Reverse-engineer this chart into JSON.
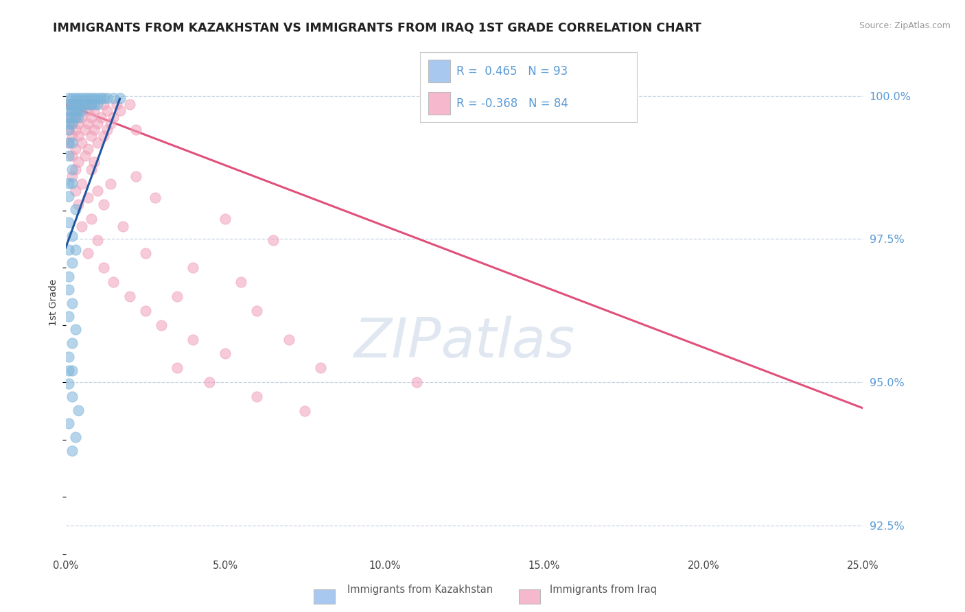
{
  "title": "IMMIGRANTS FROM KAZAKHSTAN VS IMMIGRANTS FROM IRAQ 1ST GRADE CORRELATION CHART",
  "source_text": "Source: ZipAtlas.com",
  "ylabel": "1st Grade",
  "xlim": [
    0.0,
    0.25
  ],
  "ylim": [
    0.92,
    1.008
  ],
  "xticks": [
    0.0,
    0.05,
    0.1,
    0.15,
    0.2,
    0.25
  ],
  "xticklabels": [
    "0.0%",
    "5.0%",
    "10.0%",
    "15.0%",
    "20.0%",
    "25.0%"
  ],
  "ytick_vals": [
    0.925,
    0.95,
    0.975,
    1.0
  ],
  "ytick_labels": [
    "92.5%",
    "95.0%",
    "97.5%",
    "100.0%"
  ],
  "legend_kaz_R": "0.465",
  "legend_kaz_N": "93",
  "legend_iraq_R": "-0.368",
  "legend_iraq_N": "84",
  "kaz_color": "#7ab3d9",
  "iraq_color": "#f0a0b8",
  "kaz_line_color": "#2255a0",
  "iraq_line_color": "#e0507a",
  "legend_kaz_color": "#a8c8f0",
  "legend_iraq_color": "#f5b8cc",
  "watermark_color": "#ccd8e8",
  "grid_color": "#c8d4e4",
  "right_tick_color": "#5b9bd5",
  "background_color": "#ffffff",
  "kaz_line": [
    [
      0.0,
      0.9735
    ],
    [
      0.017,
      0.9995
    ]
  ],
  "iraq_line": [
    [
      0.0,
      0.9985
    ],
    [
      0.25,
      0.9455
    ]
  ],
  "kaz_scatter": [
    [
      0.001,
      0.9996
    ],
    [
      0.002,
      0.9996
    ],
    [
      0.003,
      0.9996
    ],
    [
      0.004,
      0.9996
    ],
    [
      0.005,
      0.9996
    ],
    [
      0.006,
      0.9996
    ],
    [
      0.007,
      0.9996
    ],
    [
      0.008,
      0.9996
    ],
    [
      0.009,
      0.9996
    ],
    [
      0.01,
      0.9996
    ],
    [
      0.011,
      0.9996
    ],
    [
      0.012,
      0.9996
    ],
    [
      0.013,
      0.9996
    ],
    [
      0.015,
      0.9996
    ],
    [
      0.017,
      0.9996
    ],
    [
      0.001,
      0.9985
    ],
    [
      0.002,
      0.9985
    ],
    [
      0.003,
      0.9985
    ],
    [
      0.004,
      0.9985
    ],
    [
      0.005,
      0.9985
    ],
    [
      0.006,
      0.9985
    ],
    [
      0.007,
      0.9985
    ],
    [
      0.008,
      0.9985
    ],
    [
      0.009,
      0.9985
    ],
    [
      0.01,
      0.9985
    ],
    [
      0.001,
      0.9974
    ],
    [
      0.002,
      0.9974
    ],
    [
      0.003,
      0.9974
    ],
    [
      0.004,
      0.9974
    ],
    [
      0.005,
      0.9974
    ],
    [
      0.001,
      0.9963
    ],
    [
      0.002,
      0.9963
    ],
    [
      0.003,
      0.9963
    ],
    [
      0.004,
      0.9963
    ],
    [
      0.001,
      0.9952
    ],
    [
      0.002,
      0.9952
    ],
    [
      0.001,
      0.9941
    ],
    [
      0.001,
      0.9918
    ],
    [
      0.002,
      0.9918
    ],
    [
      0.001,
      0.9895
    ],
    [
      0.002,
      0.9872
    ],
    [
      0.001,
      0.9848
    ],
    [
      0.002,
      0.9848
    ],
    [
      0.001,
      0.9825
    ],
    [
      0.003,
      0.9802
    ],
    [
      0.001,
      0.9779
    ],
    [
      0.002,
      0.9755
    ],
    [
      0.001,
      0.9732
    ],
    [
      0.003,
      0.9732
    ],
    [
      0.002,
      0.9709
    ],
    [
      0.001,
      0.9685
    ],
    [
      0.001,
      0.9662
    ],
    [
      0.002,
      0.9638
    ],
    [
      0.001,
      0.9615
    ],
    [
      0.003,
      0.9592
    ],
    [
      0.002,
      0.9568
    ],
    [
      0.001,
      0.9545
    ],
    [
      0.001,
      0.9521
    ],
    [
      0.002,
      0.9521
    ],
    [
      0.001,
      0.9498
    ],
    [
      0.002,
      0.9475
    ],
    [
      0.004,
      0.9451
    ],
    [
      0.001,
      0.9428
    ],
    [
      0.003,
      0.9405
    ],
    [
      0.002,
      0.9381
    ]
  ],
  "iraq_scatter": [
    [
      0.001,
      0.9985
    ],
    [
      0.003,
      0.9985
    ],
    [
      0.006,
      0.9985
    ],
    [
      0.008,
      0.9985
    ],
    [
      0.012,
      0.9985
    ],
    [
      0.016,
      0.9985
    ],
    [
      0.02,
      0.9985
    ],
    [
      0.002,
      0.9974
    ],
    [
      0.004,
      0.9974
    ],
    [
      0.007,
      0.9974
    ],
    [
      0.009,
      0.9974
    ],
    [
      0.013,
      0.9974
    ],
    [
      0.017,
      0.9974
    ],
    [
      0.001,
      0.9963
    ],
    [
      0.003,
      0.9963
    ],
    [
      0.005,
      0.9963
    ],
    [
      0.008,
      0.9963
    ],
    [
      0.011,
      0.9963
    ],
    [
      0.015,
      0.9963
    ],
    [
      0.002,
      0.9952
    ],
    [
      0.004,
      0.9952
    ],
    [
      0.007,
      0.9952
    ],
    [
      0.01,
      0.9952
    ],
    [
      0.014,
      0.9952
    ],
    [
      0.001,
      0.9941
    ],
    [
      0.003,
      0.9941
    ],
    [
      0.006,
      0.9941
    ],
    [
      0.009,
      0.9941
    ],
    [
      0.013,
      0.9941
    ],
    [
      0.022,
      0.9941
    ],
    [
      0.002,
      0.993
    ],
    [
      0.004,
      0.993
    ],
    [
      0.008,
      0.993
    ],
    [
      0.012,
      0.993
    ],
    [
      0.001,
      0.9918
    ],
    [
      0.005,
      0.9918
    ],
    [
      0.01,
      0.9918
    ],
    [
      0.003,
      0.9907
    ],
    [
      0.007,
      0.9907
    ],
    [
      0.002,
      0.9896
    ],
    [
      0.006,
      0.9896
    ],
    [
      0.004,
      0.9885
    ],
    [
      0.009,
      0.9885
    ],
    [
      0.003,
      0.9872
    ],
    [
      0.008,
      0.9872
    ],
    [
      0.002,
      0.986
    ],
    [
      0.022,
      0.986
    ],
    [
      0.005,
      0.9847
    ],
    [
      0.014,
      0.9847
    ],
    [
      0.003,
      0.9835
    ],
    [
      0.01,
      0.9835
    ],
    [
      0.007,
      0.9822
    ],
    [
      0.028,
      0.9822
    ],
    [
      0.004,
      0.981
    ],
    [
      0.012,
      0.981
    ],
    [
      0.008,
      0.9785
    ],
    [
      0.05,
      0.9785
    ],
    [
      0.005,
      0.9772
    ],
    [
      0.018,
      0.9772
    ],
    [
      0.01,
      0.9748
    ],
    [
      0.065,
      0.9748
    ],
    [
      0.007,
      0.9725
    ],
    [
      0.025,
      0.9725
    ],
    [
      0.012,
      0.97
    ],
    [
      0.04,
      0.97
    ],
    [
      0.015,
      0.9675
    ],
    [
      0.055,
      0.9675
    ],
    [
      0.02,
      0.965
    ],
    [
      0.035,
      0.965
    ],
    [
      0.025,
      0.9625
    ],
    [
      0.06,
      0.9625
    ],
    [
      0.03,
      0.96
    ],
    [
      0.04,
      0.9575
    ],
    [
      0.07,
      0.9575
    ],
    [
      0.05,
      0.955
    ],
    [
      0.035,
      0.9525
    ],
    [
      0.08,
      0.9525
    ],
    [
      0.045,
      0.95
    ],
    [
      0.11,
      0.95
    ],
    [
      0.06,
      0.9475
    ],
    [
      0.075,
      0.945
    ]
  ]
}
